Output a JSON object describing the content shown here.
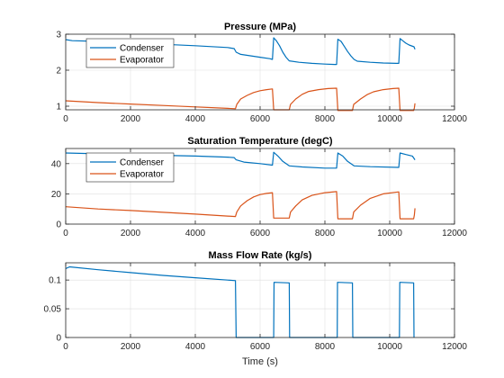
{
  "chart_data": [
    {
      "type": "line",
      "title": "Pressure (MPa)",
      "xlabel": "",
      "ylabel": "",
      "xlim": [
        0,
        12000
      ],
      "ylim": [
        0.9,
        3.0
      ],
      "xticks": [
        0,
        2000,
        4000,
        6000,
        8000,
        10000,
        12000
      ],
      "yticks": [
        1,
        2,
        3
      ],
      "grid": true,
      "legend": "top-left",
      "series": [
        {
          "name": "Condenser",
          "color": "#0072BD",
          "points": [
            [
              0,
              2.85
            ],
            [
              200,
              2.82
            ],
            [
              1000,
              2.8
            ],
            [
              2000,
              2.76
            ],
            [
              3000,
              2.72
            ],
            [
              4000,
              2.68
            ],
            [
              5000,
              2.63
            ],
            [
              5200,
              2.6
            ],
            [
              5260,
              2.5
            ],
            [
              5400,
              2.44
            ],
            [
              5700,
              2.4
            ],
            [
              6000,
              2.36
            ],
            [
              6300,
              2.32
            ],
            [
              6380,
              2.3
            ],
            [
              6420,
              2.9
            ],
            [
              6500,
              2.82
            ],
            [
              6600,
              2.68
            ],
            [
              6700,
              2.5
            ],
            [
              6800,
              2.36
            ],
            [
              6900,
              2.26
            ],
            [
              7200,
              2.22
            ],
            [
              7600,
              2.19
            ],
            [
              8000,
              2.17
            ],
            [
              8300,
              2.16
            ],
            [
              8360,
              2.16
            ],
            [
              8400,
              2.86
            ],
            [
              8500,
              2.8
            ],
            [
              8600,
              2.66
            ],
            [
              8700,
              2.52
            ],
            [
              8800,
              2.4
            ],
            [
              8900,
              2.3
            ],
            [
              9000,
              2.25
            ],
            [
              9400,
              2.22
            ],
            [
              9800,
              2.2
            ],
            [
              10200,
              2.19
            ],
            [
              10280,
              2.19
            ],
            [
              10320,
              2.88
            ],
            [
              10400,
              2.82
            ],
            [
              10500,
              2.75
            ],
            [
              10600,
              2.7
            ],
            [
              10750,
              2.65
            ],
            [
              10780,
              2.58
            ]
          ]
        },
        {
          "name": "Evaporator",
          "color": "#D95319",
          "points": [
            [
              0,
              1.15
            ],
            [
              1000,
              1.1
            ],
            [
              2000,
              1.06
            ],
            [
              3000,
              1.02
            ],
            [
              4000,
              0.98
            ],
            [
              5000,
              0.94
            ],
            [
              5240,
              0.93
            ],
            [
              5280,
              1.05
            ],
            [
              5400,
              1.2
            ],
            [
              5600,
              1.3
            ],
            [
              5800,
              1.38
            ],
            [
              6000,
              1.43
            ],
            [
              6200,
              1.46
            ],
            [
              6380,
              1.48
            ],
            [
              6420,
              0.9
            ],
            [
              6900,
              0.9
            ],
            [
              6940,
              1.05
            ],
            [
              7100,
              1.2
            ],
            [
              7300,
              1.33
            ],
            [
              7500,
              1.41
            ],
            [
              7800,
              1.46
            ],
            [
              8100,
              1.49
            ],
            [
              8360,
              1.5
            ],
            [
              8400,
              0.88
            ],
            [
              8850,
              0.88
            ],
            [
              8890,
              1.05
            ],
            [
              9100,
              1.2
            ],
            [
              9300,
              1.32
            ],
            [
              9500,
              1.4
            ],
            [
              9800,
              1.46
            ],
            [
              10100,
              1.49
            ],
            [
              10280,
              1.5
            ],
            [
              10320,
              0.88
            ],
            [
              10740,
              0.88
            ],
            [
              10760,
              0.95
            ],
            [
              10780,
              1.08
            ]
          ]
        }
      ]
    },
    {
      "type": "line",
      "title": "Saturation Temperature (degC)",
      "xlabel": "",
      "ylabel": "",
      "xlim": [
        0,
        12000
      ],
      "ylim": [
        0,
        50
      ],
      "xticks": [
        0,
        2000,
        4000,
        6000,
        8000,
        10000,
        12000
      ],
      "yticks": [
        0,
        20,
        40
      ],
      "grid": true,
      "legend": "top-left",
      "series": [
        {
          "name": "Condenser",
          "color": "#0072BD",
          "points": [
            [
              0,
              47
            ],
            [
              1000,
              46.5
            ],
            [
              2000,
              46
            ],
            [
              3000,
              45.5
            ],
            [
              4000,
              45
            ],
            [
              5000,
              44.3
            ],
            [
              5200,
              44
            ],
            [
              5260,
              42.5
            ],
            [
              5500,
              41
            ],
            [
              6000,
              40
            ],
            [
              6380,
              39
            ],
            [
              6420,
              47.5
            ],
            [
              6550,
              45
            ],
            [
              6700,
              41.5
            ],
            [
              6900,
              38.5
            ],
            [
              7300,
              37.8
            ],
            [
              8000,
              37
            ],
            [
              8360,
              37
            ],
            [
              8400,
              47
            ],
            [
              8550,
              45
            ],
            [
              8700,
              41.5
            ],
            [
              8900,
              38.5
            ],
            [
              9400,
              38
            ],
            [
              10280,
              37.5
            ],
            [
              10320,
              47
            ],
            [
              10500,
              46
            ],
            [
              10700,
              45
            ],
            [
              10780,
              42.5
            ]
          ]
        },
        {
          "name": "Evaporator",
          "color": "#D95319",
          "points": [
            [
              0,
              11.5
            ],
            [
              1000,
              10
            ],
            [
              2000,
              9
            ],
            [
              3000,
              7.8
            ],
            [
              4000,
              6.6
            ],
            [
              5000,
              5.3
            ],
            [
              5240,
              5
            ],
            [
              5280,
              8
            ],
            [
              5400,
              12
            ],
            [
              5600,
              15.5
            ],
            [
              5800,
              18
            ],
            [
              6000,
              19.5
            ],
            [
              6200,
              20.3
            ],
            [
              6380,
              20.8
            ],
            [
              6420,
              4
            ],
            [
              6900,
              4
            ],
            [
              6940,
              8
            ],
            [
              7100,
              12
            ],
            [
              7300,
              16
            ],
            [
              7600,
              19
            ],
            [
              8000,
              20.8
            ],
            [
              8360,
              21.5
            ],
            [
              8400,
              3.5
            ],
            [
              8850,
              3.5
            ],
            [
              8890,
              8
            ],
            [
              9100,
              12.5
            ],
            [
              9400,
              17
            ],
            [
              9800,
              20
            ],
            [
              10280,
              21.3
            ],
            [
              10320,
              3.5
            ],
            [
              10740,
              3.5
            ],
            [
              10760,
              6
            ],
            [
              10780,
              10.5
            ]
          ]
        }
      ]
    },
    {
      "type": "line",
      "title": "Mass Flow Rate (kg/s)",
      "xlabel": "Time (s)",
      "ylabel": "",
      "xlim": [
        0,
        12000
      ],
      "ylim": [
        0,
        0.13
      ],
      "xticks": [
        0,
        2000,
        4000,
        6000,
        8000,
        10000,
        12000
      ],
      "yticks": [
        0,
        0.05,
        0.1
      ],
      "grid": true,
      "legend": "none",
      "series": [
        {
          "name": "",
          "color": "#0072BD",
          "points": [
            [
              0,
              0.12
            ],
            [
              120,
              0.123
            ],
            [
              1000,
              0.118
            ],
            [
              2000,
              0.113
            ],
            [
              3000,
              0.108
            ],
            [
              4000,
              0.104
            ],
            [
              5000,
              0.1
            ],
            [
              5240,
              0.099
            ],
            [
              5260,
              0
            ],
            [
              6420,
              0
            ],
            [
              6430,
              0.096
            ],
            [
              6900,
              0.095
            ],
            [
              6910,
              0
            ],
            [
              8380,
              0
            ],
            [
              8390,
              0.096
            ],
            [
              8850,
              0.095
            ],
            [
              8860,
              0
            ],
            [
              10300,
              0
            ],
            [
              10310,
              0.096
            ],
            [
              10740,
              0.095
            ],
            [
              10750,
              0
            ]
          ]
        }
      ]
    }
  ]
}
